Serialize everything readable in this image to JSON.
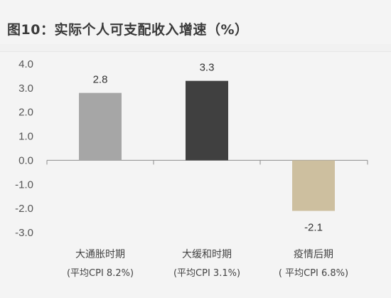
{
  "title": "图10：实际个人可支配收入增速（%）",
  "chart_data": {
    "type": "bar",
    "categories": [
      "大通胀时期",
      "大缓和时期",
      "疫情后期"
    ],
    "category_subtitles": [
      "(平均CPI 8.2%)",
      "(平均CPI 3.1%)",
      "( 平均CPI 6.8%)"
    ],
    "values": [
      2.8,
      3.3,
      -2.1
    ],
    "value_labels": [
      "2.8",
      "3.3",
      "-2.1"
    ],
    "colors": [
      "#a6a6a6",
      "#404040",
      "#cdbf9f"
    ],
    "ylim": [
      -3.0,
      4.0
    ],
    "yticks": [
      "4.0",
      "3.0",
      "2.0",
      "1.0",
      "0.0",
      "-1.0",
      "-2.0",
      "-3.0"
    ],
    "ytick_values": [
      4.0,
      3.0,
      2.0,
      1.0,
      0.0,
      -1.0,
      -2.0,
      -3.0
    ],
    "grid": false,
    "xlabel": "",
    "ylabel": ""
  }
}
